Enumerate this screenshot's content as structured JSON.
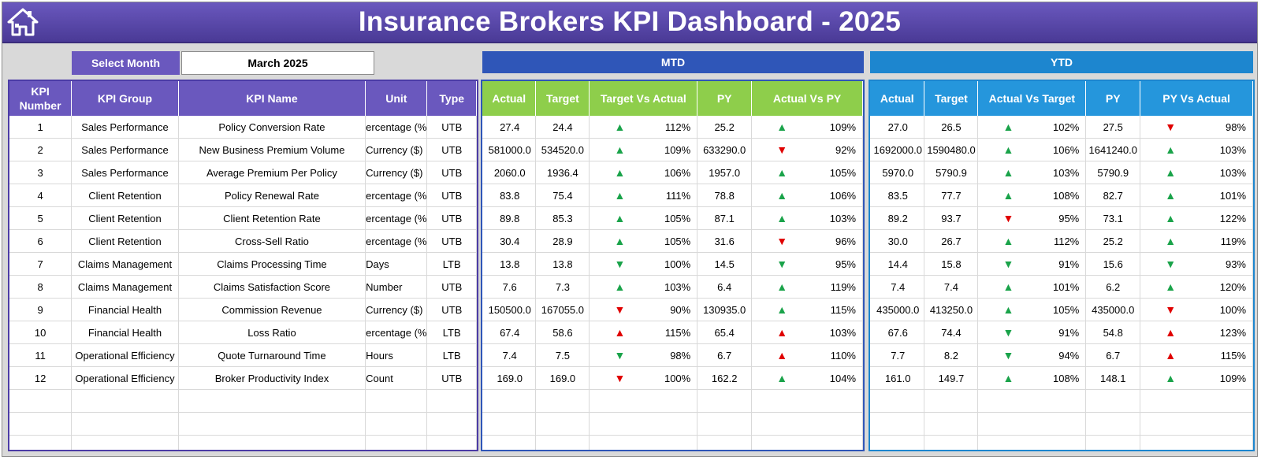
{
  "header": {
    "title": "Insurance Brokers KPI Dashboard - 2025",
    "home_icon": "home-icon"
  },
  "filter": {
    "label": "Select Month",
    "value": "March 2025"
  },
  "sections": {
    "mtd": "MTD",
    "ytd": "YTD"
  },
  "kpi_columns": [
    "KPI Number",
    "KPI Group",
    "KPI Name",
    "Unit",
    "Type"
  ],
  "mtd_columns": [
    "Actual",
    "Target",
    "Target Vs Actual",
    "PY",
    "Actual Vs PY"
  ],
  "ytd_columns": [
    "Actual",
    "Target",
    "Actual Vs Target",
    "PY",
    "PY Vs Actual"
  ],
  "colors": {
    "up": "#1aa34a",
    "down": "#e00000",
    "banner": "#5a48ab",
    "mtd": "#2f56b8",
    "ytd": "#1d86cf",
    "mtd_header": "#8ece4b"
  },
  "rows": [
    {
      "num": "1",
      "group": "Sales Performance",
      "name": "Policy Conversion Rate",
      "unit": "ercentage (%",
      "type": "UTB",
      "mtd": {
        "actual": "27.4",
        "target": "24.4",
        "tva_dir": "up",
        "tva": "112%",
        "py": "25.2",
        "avpy_dir": "up",
        "avpy": "109%"
      },
      "ytd": {
        "actual": "27.0",
        "target": "26.5",
        "avt_dir": "up",
        "avt": "102%",
        "py": "27.5",
        "pyva_dir": "down",
        "pyva": "98%"
      }
    },
    {
      "num": "2",
      "group": "Sales Performance",
      "name": "New Business Premium Volume",
      "unit": "Currency ($)",
      "type": "UTB",
      "mtd": {
        "actual": "581000.0",
        "target": "534520.0",
        "tva_dir": "up",
        "tva": "109%",
        "py": "633290.0",
        "avpy_dir": "down",
        "avpy": "92%"
      },
      "ytd": {
        "actual": "1692000.0",
        "target": "1590480.0",
        "avt_dir": "up",
        "avt": "106%",
        "py": "1641240.0",
        "pyva_dir": "up",
        "pyva": "103%"
      }
    },
    {
      "num": "3",
      "group": "Sales Performance",
      "name": "Average Premium Per Policy",
      "unit": "Currency ($)",
      "type": "UTB",
      "mtd": {
        "actual": "2060.0",
        "target": "1936.4",
        "tva_dir": "up",
        "tva": "106%",
        "py": "1957.0",
        "avpy_dir": "up",
        "avpy": "105%"
      },
      "ytd": {
        "actual": "5970.0",
        "target": "5790.9",
        "avt_dir": "up",
        "avt": "103%",
        "py": "5790.9",
        "pyva_dir": "up",
        "pyva": "103%"
      }
    },
    {
      "num": "4",
      "group": "Client Retention",
      "name": "Policy Renewal Rate",
      "unit": "ercentage (%",
      "type": "UTB",
      "mtd": {
        "actual": "83.8",
        "target": "75.4",
        "tva_dir": "up",
        "tva": "111%",
        "py": "78.8",
        "avpy_dir": "up",
        "avpy": "106%"
      },
      "ytd": {
        "actual": "83.5",
        "target": "77.7",
        "avt_dir": "up",
        "avt": "108%",
        "py": "82.7",
        "pyva_dir": "up",
        "pyva": "101%"
      }
    },
    {
      "num": "5",
      "group": "Client Retention",
      "name": "Client Retention Rate",
      "unit": "ercentage (%",
      "type": "UTB",
      "mtd": {
        "actual": "89.8",
        "target": "85.3",
        "tva_dir": "up",
        "tva": "105%",
        "py": "87.1",
        "avpy_dir": "up",
        "avpy": "103%"
      },
      "ytd": {
        "actual": "89.2",
        "target": "93.7",
        "avt_dir": "down",
        "avt": "95%",
        "py": "73.1",
        "pyva_dir": "up",
        "pyva": "122%"
      }
    },
    {
      "num": "6",
      "group": "Client Retention",
      "name": "Cross-Sell Ratio",
      "unit": "ercentage (%",
      "type": "UTB",
      "mtd": {
        "actual": "30.4",
        "target": "28.9",
        "tva_dir": "up",
        "tva": "105%",
        "py": "31.6",
        "avpy_dir": "down",
        "avpy": "96%"
      },
      "ytd": {
        "actual": "30.0",
        "target": "26.7",
        "avt_dir": "up",
        "avt": "112%",
        "py": "25.2",
        "pyva_dir": "up",
        "pyva": "119%"
      }
    },
    {
      "num": "7",
      "group": "Claims Management",
      "name": "Claims Processing Time",
      "unit": "Days",
      "type": "LTB",
      "mtd": {
        "actual": "13.8",
        "target": "13.8",
        "tva_dir": "down-green",
        "tva": "100%",
        "py": "14.5",
        "avpy_dir": "down-green",
        "avpy": "95%"
      },
      "ytd": {
        "actual": "14.4",
        "target": "15.8",
        "avt_dir": "down-green",
        "avt": "91%",
        "py": "15.6",
        "pyva_dir": "down-green",
        "pyva": "93%"
      }
    },
    {
      "num": "8",
      "group": "Claims Management",
      "name": "Claims Satisfaction Score",
      "unit": "Number",
      "type": "UTB",
      "mtd": {
        "actual": "7.6",
        "target": "7.3",
        "tva_dir": "up",
        "tva": "103%",
        "py": "6.4",
        "avpy_dir": "up",
        "avpy": "119%"
      },
      "ytd": {
        "actual": "7.4",
        "target": "7.4",
        "avt_dir": "up",
        "avt": "101%",
        "py": "6.2",
        "pyva_dir": "up",
        "pyva": "120%"
      }
    },
    {
      "num": "9",
      "group": "Financial Health",
      "name": "Commission Revenue",
      "unit": "Currency ($)",
      "type": "UTB",
      "mtd": {
        "actual": "150500.0",
        "target": "167055.0",
        "tva_dir": "down",
        "tva": "90%",
        "py": "130935.0",
        "avpy_dir": "up",
        "avpy": "115%"
      },
      "ytd": {
        "actual": "435000.0",
        "target": "413250.0",
        "avt_dir": "up",
        "avt": "105%",
        "py": "435000.0",
        "pyva_dir": "down",
        "pyva": "100%"
      }
    },
    {
      "num": "10",
      "group": "Financial Health",
      "name": "Loss Ratio",
      "unit": "ercentage (%",
      "type": "LTB",
      "mtd": {
        "actual": "67.4",
        "target": "58.6",
        "tva_dir": "up-red",
        "tva": "115%",
        "py": "65.4",
        "avpy_dir": "up-red",
        "avpy": "103%"
      },
      "ytd": {
        "actual": "67.6",
        "target": "74.4",
        "avt_dir": "down-green",
        "avt": "91%",
        "py": "54.8",
        "pyva_dir": "up-red",
        "pyva": "123%"
      }
    },
    {
      "num": "11",
      "group": "Operational Efficiency",
      "name": "Quote Turnaround Time",
      "unit": "Hours",
      "type": "LTB",
      "mtd": {
        "actual": "7.4",
        "target": "7.5",
        "tva_dir": "down-green",
        "tva": "98%",
        "py": "6.7",
        "avpy_dir": "up-red",
        "avpy": "110%"
      },
      "ytd": {
        "actual": "7.7",
        "target": "8.2",
        "avt_dir": "down-green",
        "avt": "94%",
        "py": "6.7",
        "pyva_dir": "up-red",
        "pyva": "115%"
      }
    },
    {
      "num": "12",
      "group": "Operational Efficiency",
      "name": "Broker Productivity Index",
      "unit": "Count",
      "type": "UTB",
      "mtd": {
        "actual": "169.0",
        "target": "169.0",
        "tva_dir": "down",
        "tva": "100%",
        "py": "162.2",
        "avpy_dir": "up",
        "avpy": "104%"
      },
      "ytd": {
        "actual": "161.0",
        "target": "149.7",
        "avt_dir": "up",
        "avt": "108%",
        "py": "148.1",
        "pyva_dir": "up",
        "pyva": "109%"
      }
    }
  ]
}
